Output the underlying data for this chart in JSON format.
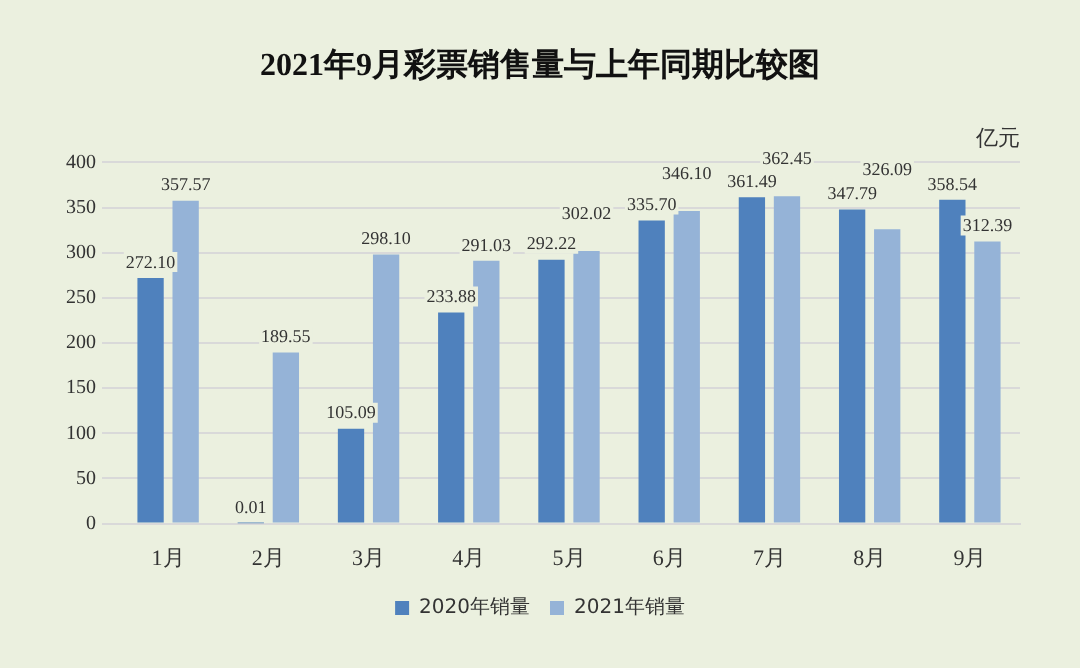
{
  "chart_data": {
    "type": "bar",
    "title": "2021年9月彩票销售量与上年同期比较图",
    "ylabel": "亿元",
    "categories": [
      "1月",
      "2月",
      "3月",
      "4月",
      "5月",
      "6月",
      "7月",
      "8月",
      "9月"
    ],
    "series": [
      {
        "name": "2020年销量",
        "color": "#4f81bd",
        "values": [
          272.1,
          0.01,
          105.09,
          233.88,
          292.22,
          335.7,
          361.49,
          347.79,
          358.54
        ],
        "value_labels": [
          "272.10",
          "0.01",
          "105.09",
          "233.88",
          "292.22",
          "335.70",
          "361.49",
          "347.79",
          "358.54"
        ]
      },
      {
        "name": "2021年销量",
        "color": "#95b3d7",
        "values": [
          357.57,
          189.55,
          298.1,
          291.03,
          302.02,
          346.1,
          362.45,
          326.09,
          312.39
        ],
        "value_labels": [
          "357.57",
          "189.55",
          "298.10",
          "291.03",
          "302.02",
          "346.10",
          "362.45",
          "326.09",
          "312.39"
        ]
      }
    ],
    "ylim": [
      0,
      400
    ],
    "yticks": [
      0,
      50,
      100,
      150,
      200,
      250,
      300,
      350,
      400
    ],
    "grid": "y",
    "legend": "bottom"
  }
}
